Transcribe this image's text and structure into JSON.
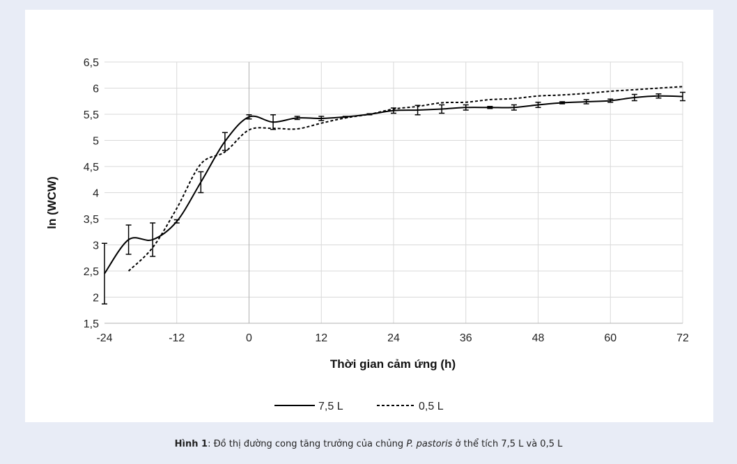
{
  "chart_data": {
    "type": "line",
    "xlabel": "Thời gian cảm ứng (h)",
    "ylabel": "ln (WCW)",
    "xlim": [
      -24,
      72
    ],
    "ylim": [
      1.5,
      6.5
    ],
    "xticks": [
      -24,
      -12,
      0,
      12,
      24,
      36,
      48,
      60,
      72
    ],
    "xtick_labels": [
      "-24",
      "-12",
      "0",
      "12",
      "24",
      "36",
      "48",
      "60",
      "72"
    ],
    "yticks": [
      1.5,
      2,
      2.5,
      3,
      3.5,
      4,
      4.5,
      5,
      5.5,
      6,
      6.5
    ],
    "ytick_labels": [
      "1,5",
      "2",
      "2,5",
      "3",
      "3,5",
      "4",
      "4,5",
      "5",
      "5,5",
      "6",
      "6,5"
    ],
    "grid": "vertical and horizontal",
    "legend_position": "bottom",
    "series": [
      {
        "name": "7,5 L",
        "style": "solid",
        "color": "#000000",
        "x": [
          -24,
          -20,
          -16,
          -12,
          -8,
          -4,
          0,
          4,
          8,
          12,
          16,
          20,
          24,
          28,
          32,
          36,
          40,
          44,
          48,
          52,
          56,
          60,
          64,
          68,
          72
        ],
        "y": [
          2.45,
          3.1,
          3.1,
          3.45,
          4.2,
          4.98,
          5.45,
          5.35,
          5.43,
          5.42,
          5.45,
          5.5,
          5.57,
          5.58,
          5.6,
          5.63,
          5.63,
          5.63,
          5.68,
          5.72,
          5.74,
          5.76,
          5.82,
          5.85,
          5.84
        ],
        "error": [
          0.58,
          0.28,
          0.32,
          0.03,
          0.2,
          0.17,
          0.04,
          0.14,
          0.03,
          0.04,
          0.01,
          0.01,
          0.05,
          0.09,
          0.08,
          0.05,
          0.02,
          0.05,
          0.05,
          0.02,
          0.04,
          0.03,
          0.06,
          0.04,
          0.08
        ]
      },
      {
        "name": "0,5 L",
        "style": "dashed",
        "color": "#000000",
        "x": [
          -20,
          -16,
          -12,
          -8,
          -4,
          0,
          4,
          8,
          12,
          16,
          20,
          24,
          28,
          32,
          36,
          40,
          44,
          48,
          52,
          56,
          60,
          64,
          68,
          72
        ],
        "y": [
          2.5,
          2.95,
          3.7,
          4.55,
          4.78,
          5.2,
          5.23,
          5.22,
          5.33,
          5.43,
          5.5,
          5.6,
          5.65,
          5.72,
          5.73,
          5.78,
          5.8,
          5.85,
          5.87,
          5.9,
          5.94,
          5.97,
          6.0,
          6.03
        ]
      }
    ]
  },
  "caption": {
    "label": "Hình 1",
    "text_before": ": Đồ thị đường cong tăng trưởng của chủng ",
    "species": "P. pastoris",
    "text_after": " ở thể tích 7,5 L và 0,5 L"
  }
}
